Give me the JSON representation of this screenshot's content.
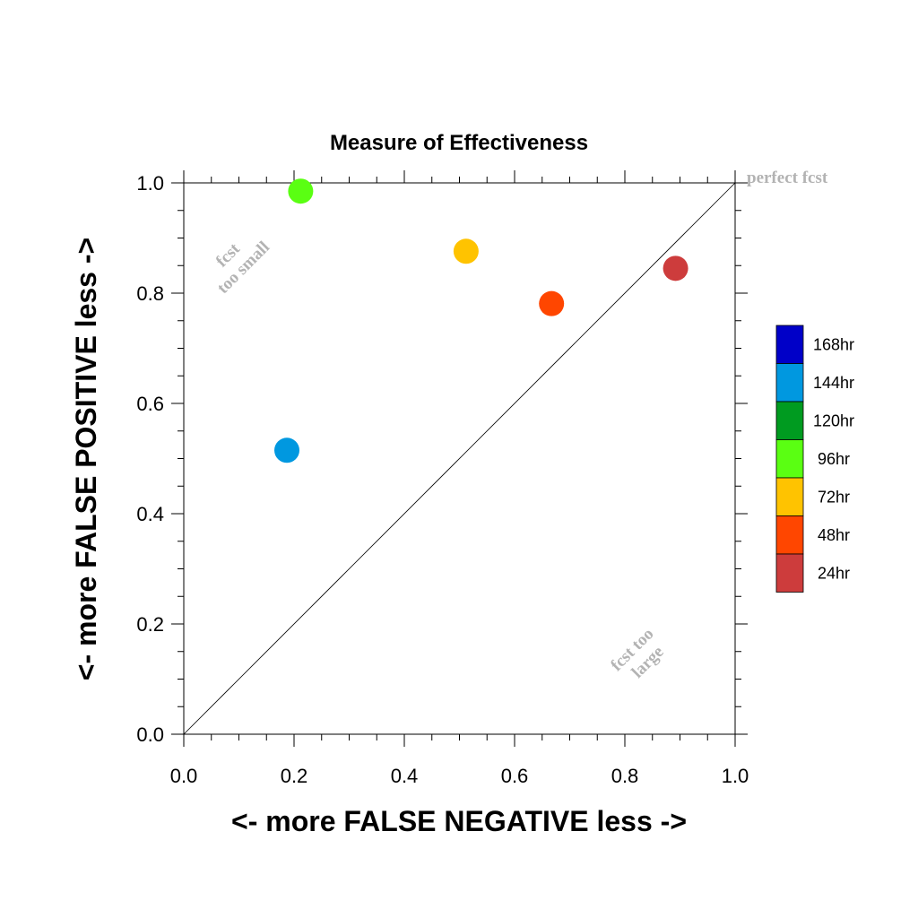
{
  "chart_data": {
    "type": "scatter",
    "title": "Measure of Effectiveness",
    "xlabel": "<- more   FALSE NEGATIVE   less ->",
    "ylabel": "<- more   FALSE POSITIVE   less ->",
    "xlim": [
      0.0,
      1.0
    ],
    "ylim": [
      0.0,
      1.0
    ],
    "x_ticks": [
      "0.0",
      "0.2",
      "0.4",
      "0.6",
      "0.8",
      "1.0"
    ],
    "y_ticks": [
      "0.0",
      "0.2",
      "0.4",
      "0.6",
      "0.8",
      "1.0"
    ],
    "grid": false,
    "diagonal_line": true,
    "annotations": [
      {
        "lines": [
          "fcst",
          "too small"
        ]
      },
      {
        "lines": [
          "fcst too",
          "large"
        ]
      },
      {
        "lines": [
          "perfect fcst"
        ]
      }
    ],
    "legend": {
      "placement": "right",
      "entries": [
        {
          "label": "168hr",
          "color": "#0000c8"
        },
        {
          "label": "144hr",
          "color": "#0098e0"
        },
        {
          "label": "120hr",
          "color": "#009b20"
        },
        {
          "label": "96hr",
          "color": "#5aff12"
        },
        {
          "label": "72hr",
          "color": "#ffc300"
        },
        {
          "label": "48hr",
          "color": "#ff4600"
        },
        {
          "label": "24hr",
          "color": "#cd3c3c"
        }
      ]
    },
    "points": [
      {
        "series": "144hr",
        "x": 0.187,
        "y": 0.515,
        "color": "#0098e0"
      },
      {
        "series": "96hr",
        "x": 0.212,
        "y": 0.985,
        "color": "#5aff12"
      },
      {
        "series": "72hr",
        "x": 0.512,
        "y": 0.876,
        "color": "#ffc300"
      },
      {
        "series": "48hr",
        "x": 0.667,
        "y": 0.781,
        "color": "#ff4600"
      },
      {
        "series": "24hr",
        "x": 0.892,
        "y": 0.845,
        "color": "#cd3c3c"
      }
    ]
  }
}
